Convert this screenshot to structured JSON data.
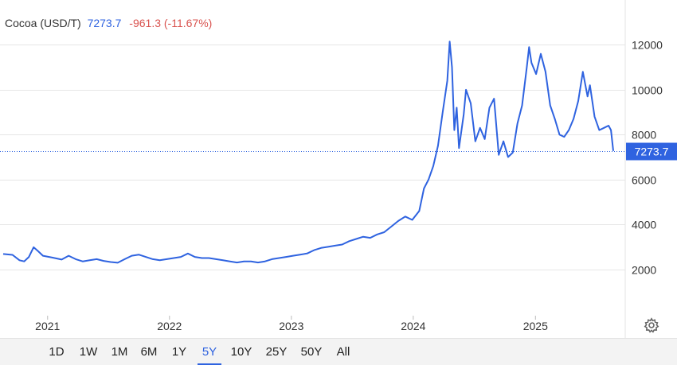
{
  "header": {
    "symbol": "Cocoa (USD/T)",
    "last": "7273.7",
    "change": "-961.3 (-11.67%)"
  },
  "colors": {
    "line": "#2f63e0",
    "grid": "#e6e6e6",
    "negative": "#d9534f",
    "badge": "#2f63e0"
  },
  "settings_icon": "gear-icon",
  "chart_data": {
    "type": "line",
    "title": "",
    "xlabel": "",
    "ylabel": "",
    "x_axis": {
      "start": "2020-08-21",
      "end": "2025-08-22",
      "ticks": [
        "2021",
        "2022",
        "2023",
        "2024",
        "2025"
      ]
    },
    "ylim": [
      0,
      14000
    ],
    "y_ticks": [
      2000,
      4000,
      6000,
      8000,
      10000,
      12000
    ],
    "y_tick_labels": [
      "2000",
      "4000",
      "6000",
      "8000",
      "10000",
      "12000"
    ],
    "grid": true,
    "last_value": 7273.7,
    "last_value_label": "7273.7",
    "series": [
      {
        "name": "",
        "points": [
          [
            "2020-08-21",
            2680
          ],
          [
            "2020-09-18",
            2640
          ],
          [
            "2020-10-09",
            2400
          ],
          [
            "2020-10-23",
            2350
          ],
          [
            "2020-11-06",
            2550
          ],
          [
            "2020-11-20",
            2980
          ],
          [
            "2020-12-04",
            2800
          ],
          [
            "2020-12-18",
            2600
          ],
          [
            "2021-01-15",
            2520
          ],
          [
            "2021-02-12",
            2430
          ],
          [
            "2021-03-05",
            2600
          ],
          [
            "2021-03-26",
            2450
          ],
          [
            "2021-04-16",
            2350
          ],
          [
            "2021-05-07",
            2400
          ],
          [
            "2021-05-28",
            2450
          ],
          [
            "2021-06-18",
            2370
          ],
          [
            "2021-07-09",
            2320
          ],
          [
            "2021-07-30",
            2290
          ],
          [
            "2021-08-20",
            2450
          ],
          [
            "2021-09-10",
            2600
          ],
          [
            "2021-10-01",
            2650
          ],
          [
            "2021-10-22",
            2550
          ],
          [
            "2021-11-12",
            2450
          ],
          [
            "2021-12-03",
            2400
          ],
          [
            "2021-12-24",
            2450
          ],
          [
            "2022-01-14",
            2500
          ],
          [
            "2022-02-04",
            2550
          ],
          [
            "2022-02-25",
            2700
          ],
          [
            "2022-03-18",
            2550
          ],
          [
            "2022-04-08",
            2500
          ],
          [
            "2022-04-29",
            2500
          ],
          [
            "2022-05-20",
            2450
          ],
          [
            "2022-06-10",
            2400
          ],
          [
            "2022-07-01",
            2350
          ],
          [
            "2022-07-22",
            2300
          ],
          [
            "2022-08-12",
            2350
          ],
          [
            "2022-09-02",
            2350
          ],
          [
            "2022-09-23",
            2300
          ],
          [
            "2022-10-14",
            2350
          ],
          [
            "2022-11-04",
            2450
          ],
          [
            "2022-11-25",
            2500
          ],
          [
            "2022-12-16",
            2550
          ],
          [
            "2023-01-06",
            2600
          ],
          [
            "2023-01-27",
            2650
          ],
          [
            "2023-02-17",
            2700
          ],
          [
            "2023-03-10",
            2850
          ],
          [
            "2023-03-31",
            2950
          ],
          [
            "2023-04-21",
            3000
          ],
          [
            "2023-05-12",
            3050
          ],
          [
            "2023-06-02",
            3100
          ],
          [
            "2023-06-23",
            3250
          ],
          [
            "2023-07-14",
            3350
          ],
          [
            "2023-08-04",
            3450
          ],
          [
            "2023-08-25",
            3400
          ],
          [
            "2023-09-15",
            3550
          ],
          [
            "2023-10-06",
            3650
          ],
          [
            "2023-10-27",
            3900
          ],
          [
            "2023-11-17",
            4150
          ],
          [
            "2023-12-08",
            4350
          ],
          [
            "2023-12-29",
            4200
          ],
          [
            "2024-01-19",
            4600
          ],
          [
            "2024-02-02",
            5600
          ],
          [
            "2024-02-16",
            6000
          ],
          [
            "2024-03-01",
            6600
          ],
          [
            "2024-03-15",
            7500
          ],
          [
            "2024-03-29",
            9000
          ],
          [
            "2024-04-12",
            10400
          ],
          [
            "2024-04-19",
            12150
          ],
          [
            "2024-04-26",
            11000
          ],
          [
            "2024-05-03",
            8200
          ],
          [
            "2024-05-10",
            9200
          ],
          [
            "2024-05-17",
            7400
          ],
          [
            "2024-05-31",
            8900
          ],
          [
            "2024-06-07",
            10000
          ],
          [
            "2024-06-21",
            9400
          ],
          [
            "2024-07-05",
            7700
          ],
          [
            "2024-07-19",
            8300
          ],
          [
            "2024-08-02",
            7800
          ],
          [
            "2024-08-16",
            9200
          ],
          [
            "2024-08-30",
            9600
          ],
          [
            "2024-09-13",
            7100
          ],
          [
            "2024-09-27",
            7700
          ],
          [
            "2024-10-11",
            7000
          ],
          [
            "2024-10-25",
            7200
          ],
          [
            "2024-11-08",
            8500
          ],
          [
            "2024-11-22",
            9300
          ],
          [
            "2024-12-06",
            11000
          ],
          [
            "2024-12-13",
            11900
          ],
          [
            "2024-12-20",
            11200
          ],
          [
            "2025-01-03",
            10700
          ],
          [
            "2025-01-17",
            11600
          ],
          [
            "2025-01-31",
            10800
          ],
          [
            "2025-02-14",
            9300
          ],
          [
            "2025-02-28",
            8700
          ],
          [
            "2025-03-14",
            8000
          ],
          [
            "2025-03-28",
            7900
          ],
          [
            "2025-04-11",
            8200
          ],
          [
            "2025-04-25",
            8700
          ],
          [
            "2025-05-09",
            9500
          ],
          [
            "2025-05-23",
            10800
          ],
          [
            "2025-06-06",
            9700
          ],
          [
            "2025-06-13",
            10200
          ],
          [
            "2025-06-27",
            8800
          ],
          [
            "2025-07-11",
            8200
          ],
          [
            "2025-07-25",
            8300
          ],
          [
            "2025-08-08",
            8400
          ],
          [
            "2025-08-15",
            8200
          ],
          [
            "2025-08-22",
            7273.7
          ]
        ]
      }
    ]
  },
  "ranges": [
    {
      "label": "1D",
      "active": false
    },
    {
      "label": "1W",
      "active": false
    },
    {
      "label": "1M",
      "active": false
    },
    {
      "label": "6M",
      "active": false
    },
    {
      "label": "1Y",
      "active": false
    },
    {
      "label": "5Y",
      "active": true
    },
    {
      "label": "10Y",
      "active": false
    },
    {
      "label": "25Y",
      "active": false
    },
    {
      "label": "50Y",
      "active": false
    },
    {
      "label": "All",
      "active": false
    }
  ]
}
